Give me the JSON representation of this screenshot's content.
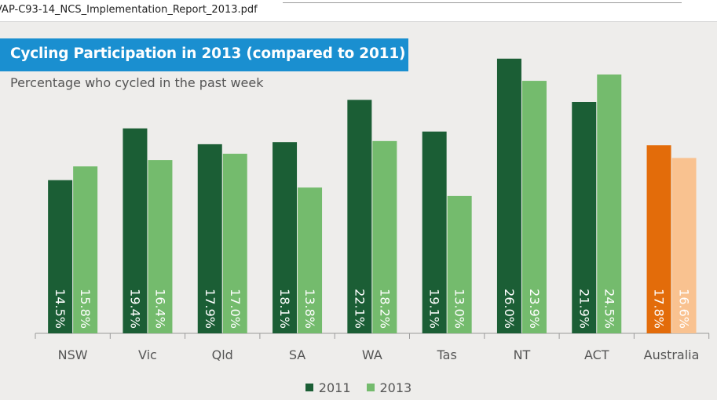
{
  "file_tab": {
    "filename": "VAP-C93-14_NCS_Implementation_Report_2013.pdf"
  },
  "chart_data": {
    "type": "bar",
    "title": "Cycling Participation in 2013 (compared to 2011)",
    "subtitle": "Percentage who cycled in the past week",
    "categories": [
      "NSW",
      "Vic",
      "Qld",
      "SA",
      "WA",
      "Tas",
      "NT",
      "ACT",
      "Australia"
    ],
    "series": [
      {
        "name": "2011",
        "values": [
          14.5,
          19.4,
          17.9,
          18.1,
          22.1,
          19.1,
          26.0,
          21.9,
          17.8
        ],
        "labels": [
          "14.5%",
          "19.4%",
          "17.9%",
          "18.1%",
          "22.1%",
          "19.1%",
          "26.0%",
          "21.9%",
          "17.8%"
        ],
        "color": "#1b5e35",
        "highlight_color": "#e36c0a"
      },
      {
        "name": "2013",
        "values": [
          15.8,
          16.4,
          17.0,
          13.8,
          18.2,
          13.0,
          23.9,
          24.5,
          16.6
        ],
        "labels": [
          "15.8%",
          "16.4%",
          "17.0%",
          "13.8%",
          "18.2%",
          "13.0%",
          "23.9%",
          "24.5%",
          "16.6%"
        ],
        "color": "#74bb6d",
        "highlight_color": "#f9c290"
      }
    ],
    "highlight_category": "Australia",
    "ylim": [
      0,
      28
    ],
    "grid": false,
    "legend": "bottom-center",
    "data_labels": "inside-bar-rotated"
  }
}
